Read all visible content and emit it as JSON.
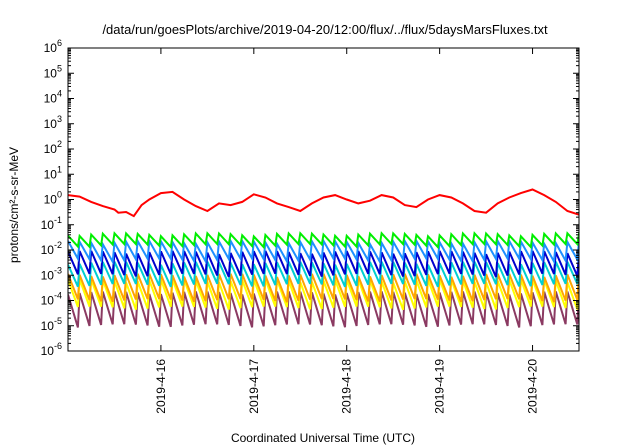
{
  "chart_data": {
    "type": "line",
    "title": "/data/run/goesPlots/archive/2019-04-20/12:00/flux/../flux/5daysMarsFluxes.txt",
    "xlabel": "Coordinated Universal Time (UTC)",
    "ylabel": "protons/cm²-s-sr-MeV",
    "yscale": "log",
    "ylim": [
      1e-06,
      1000000.0
    ],
    "xlim": [
      "2019-04-15 00:00",
      "2019-04-20 12:00"
    ],
    "grid": false,
    "legend": "none",
    "y_ticks": [
      {
        "base": "10",
        "exp": "-6"
      },
      {
        "base": "10",
        "exp": "-5"
      },
      {
        "base": "10",
        "exp": "-4"
      },
      {
        "base": "10",
        "exp": "-3"
      },
      {
        "base": "10",
        "exp": "-2"
      },
      {
        "base": "10",
        "exp": "-1"
      },
      {
        "base": "10",
        "exp": "0"
      },
      {
        "base": "10",
        "exp": "1"
      },
      {
        "base": "10",
        "exp": "2"
      },
      {
        "base": "10",
        "exp": "3"
      },
      {
        "base": "10",
        "exp": "4"
      },
      {
        "base": "10",
        "exp": "5"
      },
      {
        "base": "10",
        "exp": "6"
      }
    ],
    "x_ticks": [
      {
        "label": "2019-4-16",
        "date": "2019-04-16"
      },
      {
        "label": "2019-4-17",
        "date": "2019-04-17"
      },
      {
        "label": "2019-4-18",
        "date": "2019-04-18"
      },
      {
        "label": "2019-4-19",
        "date": "2019-04-19"
      },
      {
        "label": "2019-4-20",
        "date": "2019-04-20"
      }
    ],
    "series": [
      {
        "color": "#ff0000",
        "x": [
          "2019-04-15 00:00",
          "2019-04-15 03:00",
          "2019-04-15 06:00",
          "2019-04-15 09:00",
          "2019-04-15 12:00",
          "2019-04-15 13:00",
          "2019-04-15 15:00",
          "2019-04-15 17:00",
          "2019-04-15 19:00",
          "2019-04-15 21:00",
          "2019-04-16 00:00",
          "2019-04-16 03:00",
          "2019-04-16 06:00",
          "2019-04-16 09:00",
          "2019-04-16 12:00",
          "2019-04-16 15:00",
          "2019-04-16 18:00",
          "2019-04-16 21:00",
          "2019-04-17 00:00",
          "2019-04-17 03:00",
          "2019-04-17 06:00",
          "2019-04-17 09:00",
          "2019-04-17 12:00",
          "2019-04-17 15:00",
          "2019-04-17 18:00",
          "2019-04-17 21:00",
          "2019-04-18 00:00",
          "2019-04-18 03:00",
          "2019-04-18 06:00",
          "2019-04-18 09:00",
          "2019-04-18 12:00",
          "2019-04-18 15:00",
          "2019-04-18 18:00",
          "2019-04-18 21:00",
          "2019-04-19 00:00",
          "2019-04-19 03:00",
          "2019-04-19 06:00",
          "2019-04-19 09:00",
          "2019-04-19 12:00",
          "2019-04-19 15:00",
          "2019-04-19 18:00",
          "2019-04-19 21:00",
          "2019-04-20 00:00",
          "2019-04-20 03:00",
          "2019-04-20 06:00",
          "2019-04-20 09:00",
          "2019-04-20 12:00"
        ],
        "y": [
          1.5,
          1.3,
          0.8,
          0.55,
          0.4,
          0.3,
          0.32,
          0.22,
          0.6,
          1.0,
          1.8,
          2.0,
          1.0,
          0.55,
          0.35,
          0.7,
          0.6,
          0.8,
          1.6,
          1.2,
          0.7,
          0.5,
          0.35,
          0.7,
          1.2,
          1.5,
          1.0,
          0.7,
          0.9,
          1.5,
          1.2,
          0.6,
          0.5,
          1.0,
          1.5,
          1.2,
          0.7,
          0.35,
          0.3,
          0.7,
          1.2,
          1.8,
          2.5,
          1.5,
          0.8,
          0.35,
          0.25
        ]
      },
      {
        "color": "#00ee00",
        "x": [
          "2019-04-15 00:00",
          "2019-04-20 12:00"
        ],
        "y": [
          0.03,
          0.03
        ]
      },
      {
        "color": "#1e90ff",
        "x": [
          "2019-04-15 00:00",
          "2019-04-20 12:00"
        ],
        "y": [
          0.015,
          0.015
        ]
      },
      {
        "color": "#0000cd",
        "x": [
          "2019-04-15 00:00",
          "2019-04-20 12:00"
        ],
        "y": [
          0.005,
          0.005
        ]
      },
      {
        "color": "#00ced1",
        "x": [
          "2019-04-15 00:00",
          "2019-04-20 12:00"
        ],
        "y": [
          0.002,
          0.002
        ]
      },
      {
        "color": "#ffa500",
        "x": [
          "2019-04-15 00:00",
          "2019-04-20 12:00"
        ],
        "y": [
          0.0008,
          0.0008
        ]
      },
      {
        "color": "#ffff00",
        "x": [
          "2019-04-15 00:00",
          "2019-04-20 12:00"
        ],
        "y": [
          0.0003,
          0.0003
        ]
      },
      {
        "color": "#8b3a62",
        "x": [
          "2019-04-15 00:00",
          "2019-04-20 12:00"
        ],
        "y": [
          5e-05,
          5e-05
        ]
      }
    ],
    "sawtooth": {
      "period_hours": 3,
      "series_ranges": [
        {
          "color": "#00ee00",
          "high": 0.04,
          "low": 0.015
        },
        {
          "color": "#1e90ff",
          "high": 0.02,
          "low": 0.004
        },
        {
          "color": "#0000cd",
          "high": 0.008,
          "low": 0.001
        },
        {
          "color": "#00ced1",
          "high": 0.003,
          "low": 0.0004
        },
        {
          "color": "#ffa500",
          "high": 0.001,
          "low": 0.0001
        },
        {
          "color": "#ffff00",
          "high": 0.0006,
          "low": 5e-05
        },
        {
          "color": "#8b3a62",
          "high": 0.0002,
          "low": 1e-05
        }
      ]
    }
  }
}
